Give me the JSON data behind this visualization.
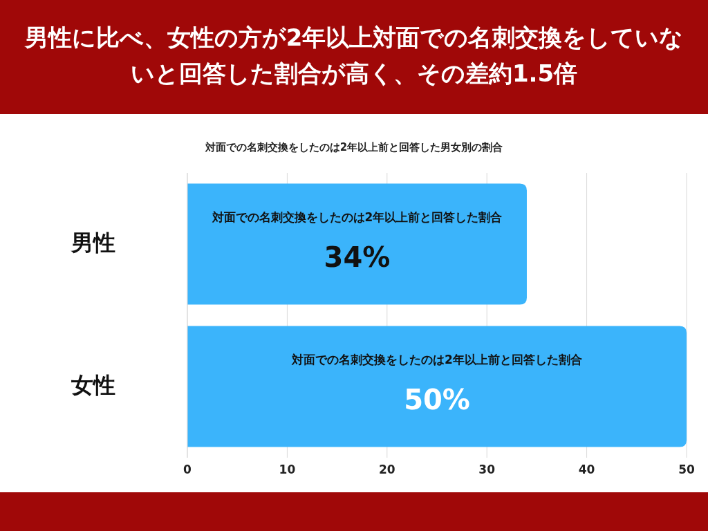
{
  "chart_data": {
    "type": "bar",
    "orientation": "horizontal",
    "title": "男性に比べ、女性の方が2年以上対面での名刺交換をしていないと回答した割合が高く、その差約1.5倍",
    "subtitle": "対面での名刺交換をしたのは2年以上前と回答した男女別の割合",
    "categories": [
      "男性",
      "女性"
    ],
    "series": [
      {
        "name": "対面での名刺交換をしたのは2年以上前と回答した割合",
        "color": "#3bb4fb",
        "values": [
          34,
          50
        ],
        "value_labels": [
          "34%",
          "50%"
        ]
      }
    ],
    "xlim": [
      0,
      50
    ],
    "xticks": [
      0,
      10,
      20,
      30,
      40,
      50
    ],
    "grid": "x"
  }
}
